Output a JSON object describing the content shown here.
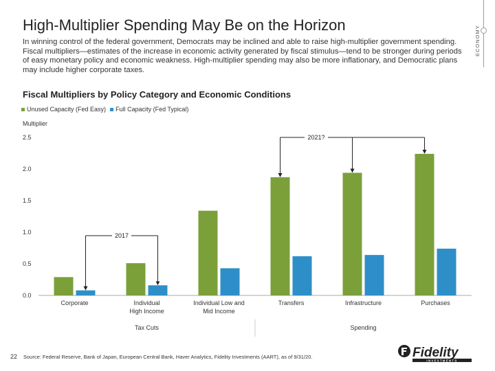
{
  "header": {
    "title": "High-Multiplier Spending May Be on the Horizon",
    "subtitle": "In winning control of the federal government, Democrats may be inclined and able to raise high-multiplier government spending. Fiscal multipliers—estimates of the increase in economic activity generated by fiscal stimulus—tend to be stronger during periods of easy monetary policy and economic weakness. High-multiplier spending may also be more inflationary, and Democratic plans may include higher corporate taxes.",
    "side_label": "ECONOMY"
  },
  "colors": {
    "unused": "#7ba03a",
    "full": "#2e8fc8"
  },
  "chart_data": {
    "type": "bar",
    "title": "Fiscal Multipliers by Policy Category and Economic Conditions",
    "ylabel": "Multiplier",
    "xlabel": "",
    "ylim": [
      0,
      2.5
    ],
    "yticks": [
      "0.0",
      "0.5",
      "1.0",
      "1.5",
      "2.0",
      "2.5"
    ],
    "legend": "top-left",
    "grid": false,
    "categories": [
      "Corporate",
      "Individual High Income",
      "Individual Low and Mid Income",
      "Transfers",
      "Infrastructure",
      "Purchases"
    ],
    "category_lines": [
      [
        "Corporate"
      ],
      [
        "Individual",
        "High Income"
      ],
      [
        "Individual Low and",
        "Mid Income"
      ],
      [
        "Transfers"
      ],
      [
        "Infrastructure"
      ],
      [
        "Purchases"
      ]
    ],
    "series": [
      {
        "name": "Unused Capacity (Fed Easy)",
        "values": [
          0.29,
          0.51,
          1.34,
          1.87,
          1.94,
          2.24
        ]
      },
      {
        "name": "Full Capacity (Fed Typical)",
        "values": [
          0.08,
          0.16,
          0.43,
          0.62,
          0.64,
          0.74
        ]
      }
    ],
    "groups": [
      {
        "label": "Tax Cuts"
      },
      {
        "label": "Spending"
      }
    ],
    "annotations": [
      {
        "text": "2017"
      },
      {
        "text": "2021?"
      }
    ]
  },
  "footer": {
    "page_number": "22",
    "source": "Source: Federal Reserve, Bank of Japan, European Central Bank, Haver Analytics, Fidelity Investments (AART), as of 9/31/20."
  },
  "logo": {
    "text": "Fidelity",
    "subtext": "INVESTMENTS"
  }
}
